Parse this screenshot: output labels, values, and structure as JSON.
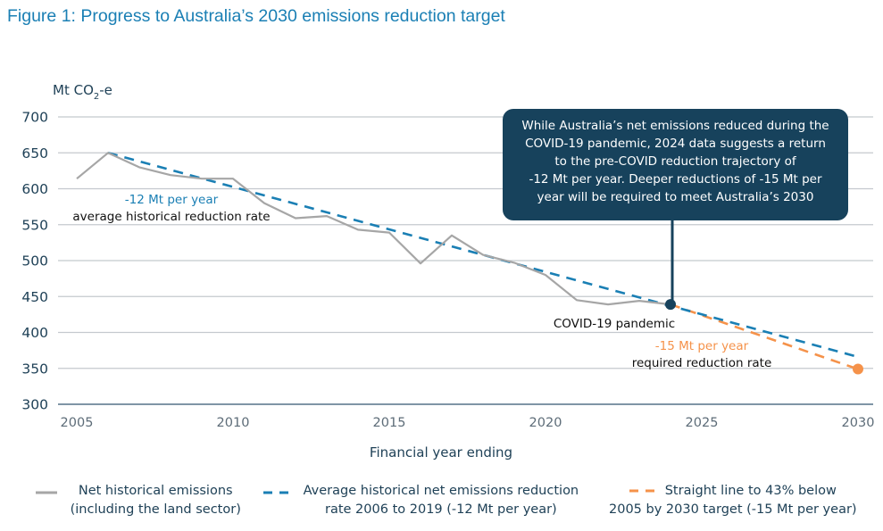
{
  "title": "Figure 1: Progress to Australia’s 2030 emissions reduction target",
  "chart_data": {
    "type": "line",
    "title": "Figure 1: Progress to Australia’s 2030 emissions reduction target",
    "ylabel_main": "Mt CO",
    "ylabel_sub": "2",
    "ylabel_suffix": "-e",
    "xlabel": "Financial year ending",
    "xlim": [
      2005,
      2030
    ],
    "ylim": [
      300,
      700
    ],
    "x_ticks": [
      2005,
      2010,
      2015,
      2020,
      2025,
      2030
    ],
    "y_ticks": [
      300,
      350,
      400,
      450,
      500,
      550,
      600,
      650,
      700
    ],
    "grid": "horizontal",
    "colors": {
      "historical": "#a6a6a6",
      "average": "#1a7fb4",
      "target": "#f5924a",
      "callout": "#17425c",
      "gridline": "#c4c9ce"
    },
    "series": [
      {
        "name": "Net historical emissions (including the land sector)",
        "style": "solid",
        "x": [
          2005,
          2006,
          2007,
          2008,
          2009,
          2010,
          2011,
          2012,
          2013,
          2014,
          2015,
          2016,
          2017,
          2018,
          2019,
          2020,
          2021,
          2022,
          2023,
          2024
        ],
        "values": [
          614,
          650,
          630,
          619,
          614,
          614,
          580,
          559,
          562,
          543,
          539,
          496,
          535,
          508,
          497,
          480,
          445,
          439,
          444,
          439
        ]
      },
      {
        "name": "Average historical net emissions reduction rate 2006 to 2019 (-12 Mt per year)",
        "style": "dashed",
        "x": [
          2006,
          2030
        ],
        "values": [
          650,
          366
        ]
      },
      {
        "name": "Straight line to 43% below 2005 by 2030 target (-15 Mt per year)",
        "style": "dashed",
        "x": [
          2024,
          2030
        ],
        "values": [
          439,
          349
        ]
      }
    ],
    "markers": [
      {
        "name": "covid-marker",
        "x": 2024,
        "y": 439,
        "color": "#17425c"
      },
      {
        "name": "target-marker",
        "x": 2030,
        "y": 349,
        "color": "#f5924a"
      }
    ],
    "annotations": {
      "avg_rate": "-12 Mt per year",
      "avg_rate_desc": "average historical reduction rate",
      "covid": "COVID-19 pandemic",
      "req_rate": "-15 Mt per year",
      "req_rate_desc": "required reduction rate"
    },
    "callout_lines": [
      "While Australia’s net emissions reduced during the",
      "COVID-19 pandemic, 2024 data suggests a return",
      "to the pre-COVID reduction trajectory of",
      "-12 Mt per year. Deeper reductions of -15 Mt per",
      "year will be required to meet Australia’s 2030"
    ],
    "legend": [
      {
        "line1": "Net historical emissions",
        "line2": "(including the land sector)"
      },
      {
        "line1": "Average historical net emissions reduction",
        "line2": "rate 2006 to 2019 (-12 Mt per year)"
      },
      {
        "line1": "Straight line to 43% below",
        "line2": "2005 by 2030 target (-15 Mt per year)"
      }
    ],
    "legend_position": "bottom"
  }
}
